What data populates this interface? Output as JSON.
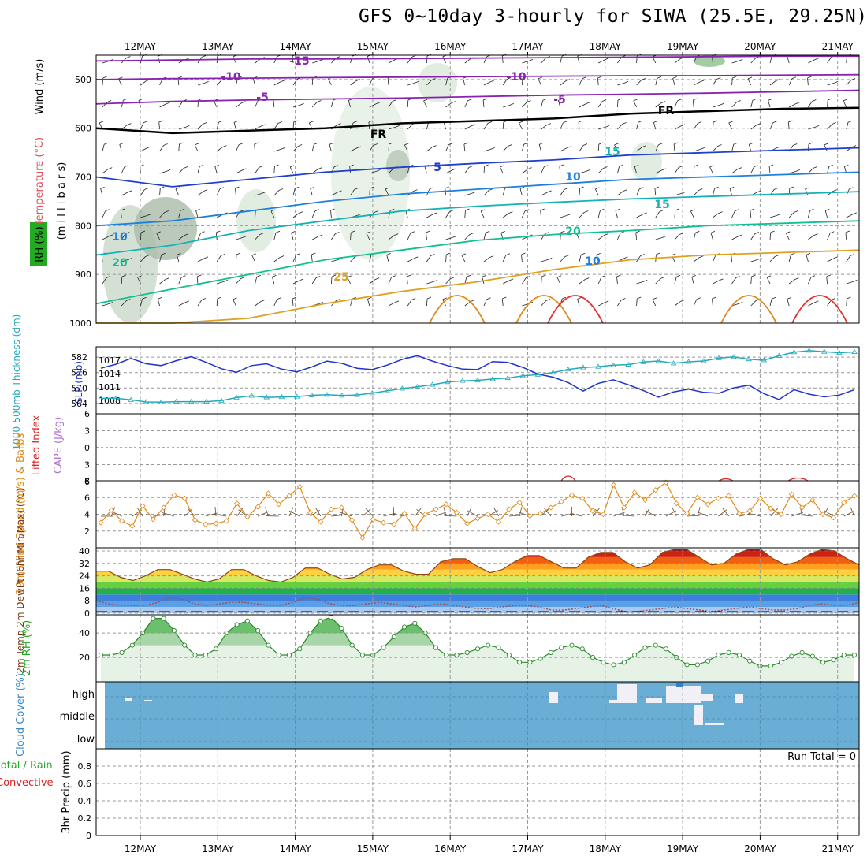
{
  "title": "GFS 0~10day 3-hourly for SIWA (25.5E, 29.25N)",
  "colors": {
    "accent_blue": "#2233cc",
    "cyan": "#22aabb",
    "orange": "#e08a1a",
    "green": "#2aa02a",
    "cloud": "#6aaed6",
    "red": "#dd2222"
  },
  "chart_data": [
    {
      "type": "heatmap",
      "name": "upper-air",
      "dates": [
        "12MAY",
        "13MAY",
        "14MAY",
        "15MAY",
        "16MAY",
        "17MAY",
        "18MAY",
        "19MAY",
        "20MAY",
        "21MAY"
      ],
      "ylabel_parts": [
        "RH (%)",
        "Temperature (°C)",
        "Wind (m/s)"
      ],
      "yunit": "(m i l l i b a r s)",
      "yticks": [
        500,
        600,
        700,
        800,
        900,
        1000
      ],
      "ylim": [
        1000,
        450
      ],
      "contour_labels": [
        "-15",
        "-10",
        "-10",
        "-5",
        "-5",
        "FR",
        "FR",
        "5",
        "10",
        "10",
        "15",
        "20",
        "20",
        "25",
        "10",
        "15"
      ],
      "isotherms": [
        {
          "temp": -15,
          "p": [
            462,
            460,
            458,
            458,
            457,
            456,
            455,
            454,
            453,
            452,
            452
          ]
        },
        {
          "temp": -10,
          "p": [
            500,
            498,
            497,
            496,
            495,
            494,
            493,
            492,
            492,
            491,
            490
          ]
        },
        {
          "temp": -5,
          "p": [
            550,
            545,
            542,
            540,
            538,
            535,
            532,
            530,
            528,
            525,
            522
          ]
        },
        {
          "temp": 0,
          "p": [
            600,
            610,
            605,
            600,
            590,
            585,
            580,
            570,
            565,
            560,
            558
          ]
        },
        {
          "temp": 5,
          "p": [
            700,
            720,
            705,
            690,
            680,
            672,
            665,
            655,
            650,
            645,
            640
          ]
        },
        {
          "temp": 10,
          "p": [
            800,
            790,
            770,
            750,
            735,
            725,
            715,
            705,
            700,
            695,
            690
          ]
        },
        {
          "temp": 15,
          "p": [
            860,
            840,
            810,
            790,
            770,
            760,
            752,
            745,
            740,
            735,
            730
          ]
        },
        {
          "temp": 20,
          "p": [
            960,
            930,
            900,
            870,
            850,
            830,
            818,
            810,
            800,
            795,
            790
          ]
        },
        {
          "temp": 25,
          "p": [
            1000,
            1000,
            990,
            960,
            935,
            915,
            890,
            870,
            860,
            855,
            850
          ]
        }
      ]
    },
    {
      "type": "line",
      "name": "thickness-slp",
      "ylabel_left": "1000-500mb Thickness (dm)",
      "ylabel_right": "SLP (mb)",
      "left_ticks": [
        564,
        570,
        576,
        582
      ],
      "right_ticks": [
        1008,
        1011,
        1014,
        1017
      ],
      "series": [
        {
          "name": "SLP (mb)",
          "values": [
            1015.2,
            1016.1,
            1017.4,
            1016.2,
            1015.8,
            1016.9,
            1017.8,
            1016.5,
            1015.1,
            1014.3,
            1015.8,
            1016.2,
            1015.0,
            1014.4,
            1015.5,
            1016.8,
            1016.3,
            1015.2,
            1014.9,
            1015.9,
            1017.2,
            1018.0,
            1016.8,
            1015.8,
            1015.0,
            1014.9,
            1016.7,
            1016.5,
            1015.4,
            1013.9,
            1013.2,
            1012.0,
            1010.1,
            1011.8,
            1012.6,
            1011.5,
            1010.2,
            1008.7,
            1009.9,
            1010.5,
            1009.8,
            1009.6,
            1010.8,
            1011.4,
            1009.5,
            1008.2,
            1010.4,
            1009.4,
            1008.8,
            1009.2,
            1010.4
          ]
        },
        {
          "name": "Thickness (dm)",
          "values": [
            566.0,
            566.0,
            565.4,
            564.6,
            564.5,
            564.7,
            564.7,
            564.7,
            565.1,
            566.3,
            567.0,
            566.4,
            566.5,
            566.7,
            567.2,
            567.4,
            567.1,
            567.3,
            568.0,
            568.9,
            569.8,
            570.5,
            571.3,
            572.3,
            572.8,
            573.0,
            573.5,
            573.9,
            574.7,
            575.2,
            576.0,
            577.2,
            578.0,
            578.3,
            578.9,
            579.1,
            580.1,
            580.5,
            579.6,
            580.2,
            580.5,
            581.6,
            582.1,
            581.2,
            580.8,
            582.5,
            583.9,
            584.5,
            584.1,
            583.7,
            584.0
          ]
        }
      ]
    },
    {
      "type": "line",
      "name": "cape-li",
      "ylabel_left": "Lifted Index",
      "ylabel_right": "CAPE (J/kg)",
      "left_ticks": [
        6,
        3,
        0,
        -3,
        -6
      ],
      "ylim": [
        6,
        -6
      ],
      "series": [
        {
          "name": "Lifted Index",
          "values": [
            0
          ]
        }
      ]
    },
    {
      "type": "line",
      "name": "wind10m",
      "ylabel": "10m Wind Speed (m/s) & Barbs",
      "yticks": [
        2,
        4,
        6,
        8
      ],
      "ylim": [
        0,
        8
      ],
      "series": [
        {
          "name": "10m Wind Speed (m/s)",
          "values": [
            3.0,
            4.5,
            3.2,
            2.6,
            5.0,
            3.4,
            4.8,
            6.3,
            5.9,
            3.3,
            2.8,
            2.9,
            3.2,
            5.3,
            3.7,
            4.9,
            6.5,
            5.2,
            6.2,
            7.3,
            4.2,
            3.1,
            4.6,
            4.8,
            3.3,
            1.2,
            3.4,
            3.0,
            2.8,
            4.1,
            2.3,
            4.0,
            4.6,
            5.2,
            4.2,
            2.9,
            3.5,
            4.0,
            3.1,
            4.6,
            5.4,
            3.8,
            4.1,
            4.8,
            5.5,
            6.3,
            5.9,
            4.4,
            4.0,
            7.5,
            4.8,
            6.6,
            5.7,
            6.9,
            7.8,
            5.3,
            4.1,
            6.0,
            5.2,
            5.9,
            6.2,
            4.1,
            4.4,
            5.9,
            4.7,
            4.0,
            6.4,
            4.8,
            5.7,
            4.0,
            3.6,
            5.4,
            6.2
          ]
        }
      ]
    },
    {
      "type": "area",
      "name": "temperature",
      "ylabel": "2m Temp 2m DewPt (6hr Min/Max) (°C)",
      "yticks": [
        0,
        8,
        16,
        24,
        32,
        40
      ],
      "ylim": [
        0,
        42
      ],
      "series": [
        {
          "name": "2m Temp",
          "values": [
            27,
            27,
            23,
            21,
            24,
            28,
            28,
            25,
            22,
            20,
            22,
            28,
            28,
            24,
            21,
            20,
            23,
            29,
            29,
            25,
            22,
            23,
            28,
            31,
            31,
            27,
            25,
            25,
            33,
            35,
            35,
            30,
            26,
            28,
            33,
            37,
            37,
            33,
            29,
            29,
            36,
            39,
            39,
            33,
            29,
            31,
            39,
            41,
            41,
            36,
            31,
            32,
            38,
            41,
            41,
            35,
            31,
            33,
            38,
            41,
            40,
            35,
            31
          ]
        },
        {
          "name": "2m DewPt",
          "values": [
            8,
            6,
            5,
            5,
            5,
            7,
            10,
            9,
            6,
            5,
            6,
            7,
            7,
            6,
            5,
            5,
            7,
            10,
            9,
            6,
            5,
            5,
            6,
            7,
            6,
            5,
            4,
            5,
            6,
            5,
            4,
            3,
            3,
            4,
            5,
            5,
            4,
            2,
            2,
            3,
            4,
            5,
            3,
            1,
            1,
            2,
            3,
            4,
            3,
            2,
            1,
            2,
            3,
            4,
            3,
            2,
            2,
            3,
            5,
            6,
            5,
            5,
            7
          ]
        }
      ]
    },
    {
      "type": "area",
      "name": "rh",
      "ylabel": "2m RH (%)",
      "yticks": [
        20,
        40
      ],
      "ylim": [
        0,
        55
      ],
      "series": [
        {
          "name": "2m RH (%)",
          "values": [
            22,
            22,
            24,
            30,
            40,
            52,
            52,
            42,
            30,
            22,
            22,
            27,
            40,
            47,
            50,
            42,
            30,
            22,
            22,
            27,
            40,
            50,
            53,
            44,
            30,
            22,
            22,
            28,
            37,
            45,
            48,
            40,
            28,
            22,
            22,
            24,
            27,
            30,
            28,
            22,
            16,
            16,
            19,
            24,
            28,
            30,
            27,
            20,
            16,
            14,
            16,
            22,
            28,
            30,
            27,
            20,
            14,
            14,
            17,
            22,
            24,
            22,
            17,
            13,
            13,
            16,
            21,
            24,
            21,
            16,
            18,
            22,
            22
          ]
        }
      ]
    },
    {
      "type": "heatmap",
      "name": "cloud",
      "ylabel": "Cloud Cover (%)",
      "yticks": [
        "high",
        "middle",
        "low"
      ]
    },
    {
      "type": "line",
      "name": "precip",
      "ylabel_left": "Total / Rain",
      "ylabel_right": "Convective",
      "ylabel": "3hr Precip (mm)",
      "yticks": [
        0,
        0.2,
        0.4,
        0.6,
        0.8
      ],
      "ylim": [
        0,
        1.0
      ],
      "annotation": "Run Total = 0",
      "series": [
        {
          "name": "Total",
          "values": [
            0
          ]
        }
      ]
    }
  ]
}
